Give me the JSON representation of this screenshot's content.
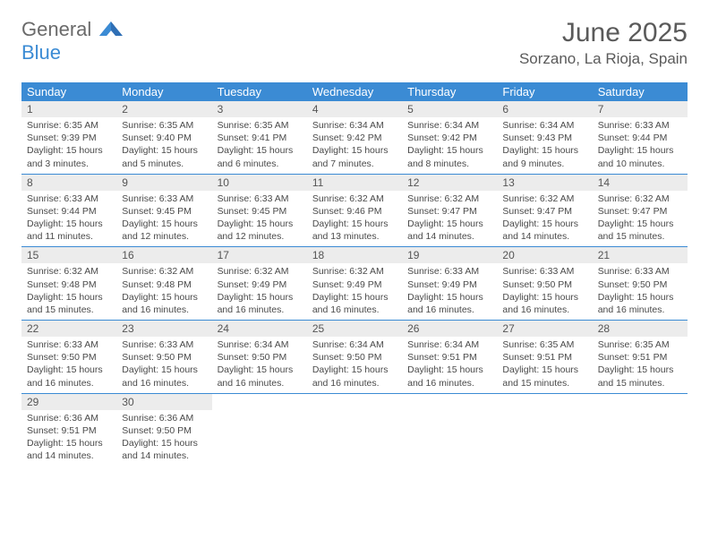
{
  "brand": {
    "part1": "General",
    "part2": "Blue"
  },
  "title": {
    "month": "June 2025",
    "location": "Sorzano, La Rioja, Spain"
  },
  "colors": {
    "header_bg": "#3b8bd4",
    "daynum_bg": "#ececec",
    "week_border": "#3b8bd4",
    "text": "#4a4a4a",
    "brand_gray": "#6a6a6a",
    "brand_blue": "#3b8bd4"
  },
  "weekdays": [
    "Sunday",
    "Monday",
    "Tuesday",
    "Wednesday",
    "Thursday",
    "Friday",
    "Saturday"
  ],
  "weeks": [
    [
      {
        "n": "1",
        "sr": "Sunrise: 6:35 AM",
        "ss": "Sunset: 9:39 PM",
        "d1": "Daylight: 15 hours",
        "d2": "and 3 minutes."
      },
      {
        "n": "2",
        "sr": "Sunrise: 6:35 AM",
        "ss": "Sunset: 9:40 PM",
        "d1": "Daylight: 15 hours",
        "d2": "and 5 minutes."
      },
      {
        "n": "3",
        "sr": "Sunrise: 6:35 AM",
        "ss": "Sunset: 9:41 PM",
        "d1": "Daylight: 15 hours",
        "d2": "and 6 minutes."
      },
      {
        "n": "4",
        "sr": "Sunrise: 6:34 AM",
        "ss": "Sunset: 9:42 PM",
        "d1": "Daylight: 15 hours",
        "d2": "and 7 minutes."
      },
      {
        "n": "5",
        "sr": "Sunrise: 6:34 AM",
        "ss": "Sunset: 9:42 PM",
        "d1": "Daylight: 15 hours",
        "d2": "and 8 minutes."
      },
      {
        "n": "6",
        "sr": "Sunrise: 6:34 AM",
        "ss": "Sunset: 9:43 PM",
        "d1": "Daylight: 15 hours",
        "d2": "and 9 minutes."
      },
      {
        "n": "7",
        "sr": "Sunrise: 6:33 AM",
        "ss": "Sunset: 9:44 PM",
        "d1": "Daylight: 15 hours",
        "d2": "and 10 minutes."
      }
    ],
    [
      {
        "n": "8",
        "sr": "Sunrise: 6:33 AM",
        "ss": "Sunset: 9:44 PM",
        "d1": "Daylight: 15 hours",
        "d2": "and 11 minutes."
      },
      {
        "n": "9",
        "sr": "Sunrise: 6:33 AM",
        "ss": "Sunset: 9:45 PM",
        "d1": "Daylight: 15 hours",
        "d2": "and 12 minutes."
      },
      {
        "n": "10",
        "sr": "Sunrise: 6:33 AM",
        "ss": "Sunset: 9:45 PM",
        "d1": "Daylight: 15 hours",
        "d2": "and 12 minutes."
      },
      {
        "n": "11",
        "sr": "Sunrise: 6:32 AM",
        "ss": "Sunset: 9:46 PM",
        "d1": "Daylight: 15 hours",
        "d2": "and 13 minutes."
      },
      {
        "n": "12",
        "sr": "Sunrise: 6:32 AM",
        "ss": "Sunset: 9:47 PM",
        "d1": "Daylight: 15 hours",
        "d2": "and 14 minutes."
      },
      {
        "n": "13",
        "sr": "Sunrise: 6:32 AM",
        "ss": "Sunset: 9:47 PM",
        "d1": "Daylight: 15 hours",
        "d2": "and 14 minutes."
      },
      {
        "n": "14",
        "sr": "Sunrise: 6:32 AM",
        "ss": "Sunset: 9:47 PM",
        "d1": "Daylight: 15 hours",
        "d2": "and 15 minutes."
      }
    ],
    [
      {
        "n": "15",
        "sr": "Sunrise: 6:32 AM",
        "ss": "Sunset: 9:48 PM",
        "d1": "Daylight: 15 hours",
        "d2": "and 15 minutes."
      },
      {
        "n": "16",
        "sr": "Sunrise: 6:32 AM",
        "ss": "Sunset: 9:48 PM",
        "d1": "Daylight: 15 hours",
        "d2": "and 16 minutes."
      },
      {
        "n": "17",
        "sr": "Sunrise: 6:32 AM",
        "ss": "Sunset: 9:49 PM",
        "d1": "Daylight: 15 hours",
        "d2": "and 16 minutes."
      },
      {
        "n": "18",
        "sr": "Sunrise: 6:32 AM",
        "ss": "Sunset: 9:49 PM",
        "d1": "Daylight: 15 hours",
        "d2": "and 16 minutes."
      },
      {
        "n": "19",
        "sr": "Sunrise: 6:33 AM",
        "ss": "Sunset: 9:49 PM",
        "d1": "Daylight: 15 hours",
        "d2": "and 16 minutes."
      },
      {
        "n": "20",
        "sr": "Sunrise: 6:33 AM",
        "ss": "Sunset: 9:50 PM",
        "d1": "Daylight: 15 hours",
        "d2": "and 16 minutes."
      },
      {
        "n": "21",
        "sr": "Sunrise: 6:33 AM",
        "ss": "Sunset: 9:50 PM",
        "d1": "Daylight: 15 hours",
        "d2": "and 16 minutes."
      }
    ],
    [
      {
        "n": "22",
        "sr": "Sunrise: 6:33 AM",
        "ss": "Sunset: 9:50 PM",
        "d1": "Daylight: 15 hours",
        "d2": "and 16 minutes."
      },
      {
        "n": "23",
        "sr": "Sunrise: 6:33 AM",
        "ss": "Sunset: 9:50 PM",
        "d1": "Daylight: 15 hours",
        "d2": "and 16 minutes."
      },
      {
        "n": "24",
        "sr": "Sunrise: 6:34 AM",
        "ss": "Sunset: 9:50 PM",
        "d1": "Daylight: 15 hours",
        "d2": "and 16 minutes."
      },
      {
        "n": "25",
        "sr": "Sunrise: 6:34 AM",
        "ss": "Sunset: 9:50 PM",
        "d1": "Daylight: 15 hours",
        "d2": "and 16 minutes."
      },
      {
        "n": "26",
        "sr": "Sunrise: 6:34 AM",
        "ss": "Sunset: 9:51 PM",
        "d1": "Daylight: 15 hours",
        "d2": "and 16 minutes."
      },
      {
        "n": "27",
        "sr": "Sunrise: 6:35 AM",
        "ss": "Sunset: 9:51 PM",
        "d1": "Daylight: 15 hours",
        "d2": "and 15 minutes."
      },
      {
        "n": "28",
        "sr": "Sunrise: 6:35 AM",
        "ss": "Sunset: 9:51 PM",
        "d1": "Daylight: 15 hours",
        "d2": "and 15 minutes."
      }
    ],
    [
      {
        "n": "29",
        "sr": "Sunrise: 6:36 AM",
        "ss": "Sunset: 9:51 PM",
        "d1": "Daylight: 15 hours",
        "d2": "and 14 minutes."
      },
      {
        "n": "30",
        "sr": "Sunrise: 6:36 AM",
        "ss": "Sunset: 9:50 PM",
        "d1": "Daylight: 15 hours",
        "d2": "and 14 minutes."
      },
      {
        "empty": true
      },
      {
        "empty": true
      },
      {
        "empty": true
      },
      {
        "empty": true
      },
      {
        "empty": true
      }
    ]
  ]
}
